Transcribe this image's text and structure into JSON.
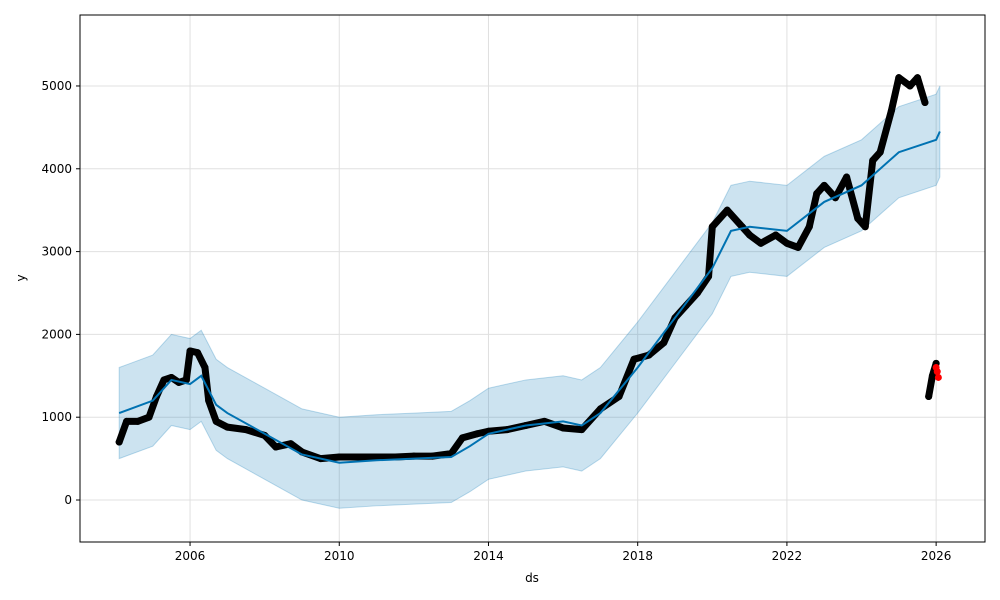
{
  "chart_data": {
    "type": "line",
    "title": "",
    "xlabel": "ds",
    "ylabel": "y",
    "xlim": [
      2003.05,
      2027.31
    ],
    "ylim": [
      -507,
      5857
    ],
    "grid": true,
    "x_ticks": [
      2006,
      2010,
      2014,
      2018,
      2022,
      2026
    ],
    "x_tick_labels": [
      "2006",
      "2010",
      "2014",
      "2018",
      "2022",
      "2026"
    ],
    "y_ticks": [
      0,
      1000,
      2000,
      3000,
      4000,
      5000
    ],
    "y_tick_labels": [
      "0",
      "1000",
      "2000",
      "3000",
      "4000",
      "5000"
    ],
    "colors": {
      "actual": "#000000",
      "forecast": "#0072B2",
      "band": "#0072B2",
      "test": "#ff0000"
    },
    "actual": {
      "x": [
        2004.1,
        2004.3,
        2004.6,
        2004.9,
        2005.1,
        2005.3,
        2005.5,
        2005.7,
        2005.9,
        2006.0,
        2006.2,
        2006.4,
        2006.5,
        2006.7,
        2007.0,
        2007.5,
        2008.0,
        2008.3,
        2008.7,
        2009.0,
        2009.5,
        2010.0,
        2010.5,
        2011.0,
        2011.5,
        2012.0,
        2012.5,
        2013.0,
        2013.3,
        2013.7,
        2014.0,
        2014.5,
        2015.0,
        2015.5,
        2016.0,
        2016.5,
        2017.0,
        2017.5,
        2017.9,
        2018.3,
        2018.7,
        2019.0,
        2019.3,
        2019.6,
        2019.9,
        2020.0,
        2020.4,
        2020.8,
        2021.0,
        2021.3,
        2021.7,
        2022.0,
        2022.3,
        2022.6,
        2022.8,
        2023.0,
        2023.3,
        2023.6,
        2023.9,
        2024.1,
        2024.3,
        2024.5,
        2024.8,
        2025.0,
        2025.3,
        2025.5,
        2025.7,
        2025.8,
        2025.9,
        2026.0
      ],
      "y": [
        700,
        950,
        950,
        1000,
        1250,
        1450,
        1480,
        1420,
        1450,
        1800,
        1780,
        1600,
        1200,
        950,
        880,
        850,
        780,
        640,
        680,
        580,
        500,
        520,
        520,
        520,
        520,
        530,
        530,
        560,
        750,
        800,
        830,
        850,
        900,
        950,
        870,
        850,
        1100,
        1250,
        1700,
        1750,
        1900,
        2200,
        2350,
        2500,
        2700,
        3300,
        3500,
        3300,
        3200,
        3100,
        3200,
        3100,
        3050,
        3300,
        3700,
        3800,
        3650,
        3900,
        3400,
        3300,
        4100,
        4200,
        4700,
        5100,
        5000,
        5100,
        4800,
        1250,
        1500,
        1650
      ]
    },
    "test": {
      "x": [
        2026.0,
        2026.03,
        2026.06
      ],
      "y": [
        1600,
        1550,
        1480
      ]
    },
    "forecast": {
      "x": [
        2004.1,
        2005,
        2005.5,
        2006,
        2006.3,
        2006.7,
        2007,
        2008,
        2009,
        2010,
        2011,
        2012,
        2013,
        2013.5,
        2014,
        2015,
        2016,
        2016.5,
        2017,
        2018,
        2019,
        2020,
        2020.5,
        2021,
        2022,
        2023,
        2024,
        2025,
        2026,
        2026.1
      ],
      "yhat": [
        1050,
        1200,
        1450,
        1400,
        1500,
        1150,
        1050,
        800,
        550,
        450,
        480,
        500,
        520,
        650,
        800,
        900,
        950,
        900,
        1050,
        1600,
        2200,
        2800,
        3250,
        3300,
        3250,
        3600,
        3800,
        4200,
        4350,
        4450
      ],
      "yhat_lower": [
        500,
        650,
        900,
        850,
        950,
        600,
        500,
        250,
        0,
        -100,
        -70,
        -50,
        -30,
        100,
        250,
        350,
        400,
        350,
        500,
        1050,
        1650,
        2250,
        2700,
        2750,
        2700,
        3050,
        3250,
        3650,
        3800,
        3900
      ],
      "yhat_upper": [
        1600,
        1750,
        2000,
        1950,
        2050,
        1700,
        1600,
        1350,
        1100,
        1000,
        1030,
        1050,
        1070,
        1200,
        1350,
        1450,
        1500,
        1450,
        1600,
        2150,
        2750,
        3350,
        3800,
        3850,
        3800,
        4150,
        4350,
        4750,
        4900,
        5000
      ]
    }
  }
}
